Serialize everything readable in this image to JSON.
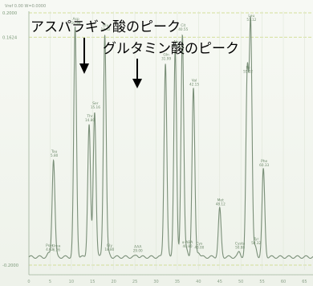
{
  "header": {
    "text": "Vref 0.00 W=0.0000"
  },
  "annotations": {
    "asp_peak": "アスパラギン酸のピーク",
    "glu_peak": "グルタミン酸のピーク"
  },
  "chart_data": {
    "type": "line",
    "title": "",
    "xlabel": "",
    "ylabel": "",
    "y_tick_labels": [
      "0.2000",
      "0.1624",
      "-0.2000"
    ],
    "x_tick_labels": [
      "0",
      "5",
      "10",
      "15",
      "20",
      "25",
      "30",
      "35",
      "40",
      "45",
      "50",
      "55",
      "60",
      "65"
    ],
    "xlim": [
      0,
      67
    ],
    "ylim": [
      -0.2,
      0.2
    ],
    "baseline": -0.18,
    "peaks": [
      {
        "label": "Tau",
        "sub": "5.80",
        "x": 5.8,
        "y": -0.03
      },
      {
        "label": "Pser",
        "sub": "4.62",
        "x": 4.7,
        "y": -0.175
      },
      {
        "label": "Urea",
        "sub": "6.26",
        "x": 6.3,
        "y": -0.176
      },
      {
        "label": "Asp",
        "sub": "10.88",
        "x": 10.9,
        "y": 0.175
      },
      {
        "label": "Thr",
        "sub": "14.80",
        "x": 14.2,
        "y": 0.025
      },
      {
        "label": "Ser",
        "sub": "15.16",
        "x": 15.5,
        "y": 0.045
      },
      {
        "label": "Glu",
        "sub": "18.62",
        "x": 17.9,
        "y": 0.165
      },
      {
        "label": "Gly",
        "sub": "18.80",
        "x": 18.8,
        "y": -0.175
      },
      {
        "label": "AAA",
        "sub": "29.00",
        "x": 25.5,
        "y": -0.177
      },
      {
        "label": "Gln",
        "sub": "31.99",
        "x": 32.2,
        "y": 0.12
      },
      {
        "label": "Ala",
        "sub": "34.78",
        "x": 34.5,
        "y": 0.14
      },
      {
        "label": "Cit",
        "sub": "40.55",
        "x": 36.2,
        "y": 0.165
      },
      {
        "label": "α-ABA",
        "sub": "40.80",
        "x": 37.2,
        "y": -0.17
      },
      {
        "label": "Val",
        "sub": "42.15",
        "x": 38.8,
        "y": 0.08
      },
      {
        "label": "Cys",
        "sub": "43.00",
        "x": 40.0,
        "y": -0.172
      },
      {
        "label": "Met",
        "sub": "48.12",
        "x": 45.0,
        "y": -0.105
      },
      {
        "label": "Cysta",
        "sub": "50.88",
        "x": 49.6,
        "y": -0.172
      },
      {
        "label": "Ile",
        "sub": "55.02",
        "x": 51.5,
        "y": 0.1
      },
      {
        "label": "Leu",
        "sub": "57.12",
        "x": 52.3,
        "y": 0.18
      },
      {
        "label": "Tyr",
        "sub": "58.32",
        "x": 53.4,
        "y": -0.165
      },
      {
        "label": "Phe",
        "sub": "60.33",
        "x": 55.3,
        "y": -0.045
      }
    ]
  }
}
